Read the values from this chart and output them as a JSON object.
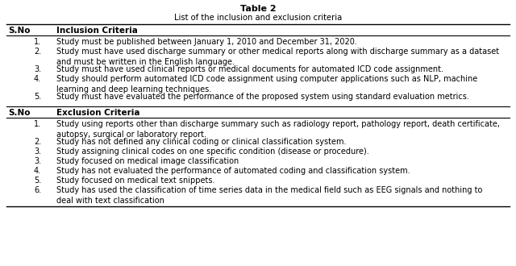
{
  "table_title": "Table 2",
  "table_subtitle": "List of the inclusion and exclusion criteria",
  "col_header_sno": "S.No",
  "inclusion_header": "Inclusion Criteria",
  "exclusion_header": "Exclusion Criteria",
  "inclusion_items": [
    [
      "1.",
      "Study must be published between January 1, 2010 and December 31, 2020."
    ],
    [
      "2.",
      "Study must have used discharge summary or other medical reports along with discharge summary as a dataset\nand must be written in the English language."
    ],
    [
      "3.",
      "Study must have used clinical reports or medical documents for automated ICD code assignment."
    ],
    [
      "4.",
      "Study should perform automated ICD code assignment using computer applications such as NLP, machine\nlearning and deep learning techniques."
    ],
    [
      "5.",
      "Study must have evaluated the performance of the proposed system using standard evaluation metrics."
    ]
  ],
  "exclusion_items": [
    [
      "1.",
      "Study using reports other than discharge summary such as radiology report, pathology report, death certificate,\nautopsy, surgical or laboratory report."
    ],
    [
      "2.",
      "Study has not defined any clinical coding or clinical classification system."
    ],
    [
      "3.",
      "Study assigning clinical codes on one specific condition (disease or procedure)."
    ],
    [
      "3.",
      "Study focused on medical image classification"
    ],
    [
      "4.",
      "Study has not evaluated the performance of automated coding and classification system."
    ],
    [
      "5.",
      "Study focused on medical text snippets."
    ],
    [
      "6.",
      "Study has used the classification of time series data in the medical field such as EEG signals and nothing to\ndeal with text classification"
    ]
  ],
  "bg_color": "#ffffff",
  "text_color": "#000000",
  "font_size": 7.0,
  "header_font_size": 7.5,
  "title_font_size": 8.0
}
